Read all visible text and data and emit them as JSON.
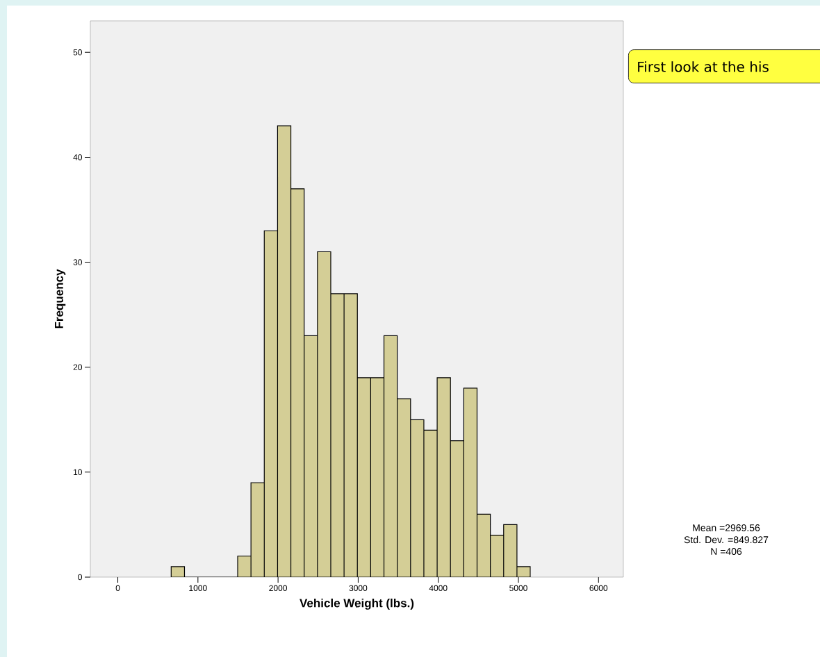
{
  "chart_data": {
    "type": "histogram",
    "xlabel": "Vehicle Weight (lbs.)",
    "ylabel": "Frequency",
    "bins": [
      666,
      832,
      998,
      1164,
      1330,
      1496,
      1662,
      1828,
      1994,
      2160,
      2326,
      2492,
      2658,
      2824,
      2990,
      3156,
      3322,
      3488,
      3654,
      3820,
      3986,
      4152,
      4318,
      4484,
      4650,
      4816,
      4982,
      5148
    ],
    "values": [
      1,
      0,
      0,
      0,
      0,
      2,
      9,
      33,
      43,
      37,
      23,
      31,
      27,
      27,
      19,
      19,
      23,
      17,
      15,
      14,
      19,
      13,
      18,
      6,
      4,
      5,
      1
    ],
    "color": "#d4ce96",
    "xlim": [
      -343,
      6310
    ],
    "ylim": [
      0,
      53
    ],
    "xticks": [
      0,
      1000,
      2000,
      3000,
      4000,
      5000,
      6000
    ],
    "yticks": [
      0,
      10,
      20,
      30,
      40,
      50
    ],
    "annotations": [
      "First look at the his",
      "Mean =2969.56",
      "Std. Dev. =849.827",
      "N =406"
    ]
  }
}
